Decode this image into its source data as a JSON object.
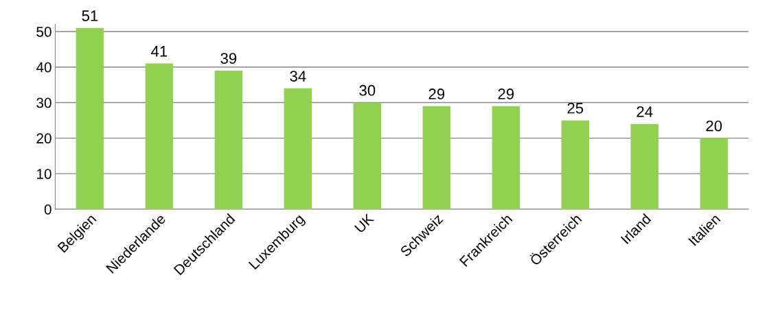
{
  "chart_data": {
    "type": "bar",
    "categories": [
      "Belgien",
      "Niederlande",
      "Deutschland",
      "Luxemburg",
      "UK",
      "Schweiz",
      "Frankreich",
      "Österreich",
      "Irland",
      "Italien"
    ],
    "values": [
      51,
      41,
      39,
      34,
      30,
      29,
      29,
      25,
      24,
      20
    ],
    "color": "#92d050",
    "ylim": [
      0,
      52
    ],
    "yticks": [
      0,
      10,
      20,
      30,
      40,
      50
    ],
    "grid": "y",
    "data_labels": true,
    "legend": false
  }
}
